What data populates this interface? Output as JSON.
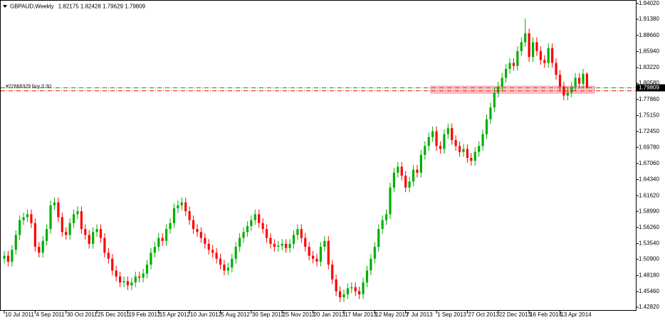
{
  "chart_data": {
    "type": "candlestick",
    "title": "GBPAUD,Weekly",
    "up_color": "#00b000",
    "down_color": "#ff0000",
    "ylim": [
      1.4282,
      1.9402
    ],
    "yticks": [
      {
        "value": 1.9402,
        "label": "1.94020"
      },
      {
        "value": 1.9138,
        "label": "1.91380"
      },
      {
        "value": 1.8866,
        "label": "1.88660"
      },
      {
        "value": 1.8594,
        "label": "1.85940"
      },
      {
        "value": 1.8322,
        "label": "1.83220"
      },
      {
        "value": 1.8058,
        "label": "1.80580"
      },
      {
        "value": 1.7786,
        "label": "1.77860"
      },
      {
        "value": 1.7515,
        "label": "1.75150"
      },
      {
        "value": 1.7245,
        "label": "1.72450"
      },
      {
        "value": 1.6978,
        "label": "1.69780"
      },
      {
        "value": 1.6706,
        "label": "1.67060"
      },
      {
        "value": 1.6434,
        "label": "1.64340"
      },
      {
        "value": 1.6162,
        "label": "1.61620"
      },
      {
        "value": 1.5899,
        "label": "1.58990"
      },
      {
        "value": 1.5626,
        "label": "1.56260"
      },
      {
        "value": 1.5354,
        "label": "1.53540"
      },
      {
        "value": 1.509,
        "label": "1.50900"
      },
      {
        "value": 1.4818,
        "label": "1.48180"
      },
      {
        "value": 1.4546,
        "label": "1.45460"
      },
      {
        "value": 1.4282,
        "label": "1.42820"
      }
    ],
    "categories": [
      "10 Jul 2011",
      null,
      null,
      null,
      null,
      null,
      null,
      null,
      "4 Sep 2011",
      null,
      null,
      null,
      null,
      null,
      null,
      null,
      "30 Oct 2011",
      null,
      null,
      null,
      null,
      null,
      null,
      null,
      "25 Dec 2011",
      null,
      null,
      null,
      null,
      null,
      null,
      null,
      "19 Feb 2012",
      null,
      null,
      null,
      null,
      null,
      null,
      null,
      "15 Apr 2012",
      null,
      null,
      null,
      null,
      null,
      null,
      null,
      "10 Jun 2012",
      null,
      null,
      null,
      null,
      null,
      null,
      null,
      "5 Aug 2012",
      null,
      null,
      null,
      null,
      null,
      null,
      null,
      "30 Sep 2012",
      null,
      null,
      null,
      null,
      null,
      null,
      null,
      "25 Nov 2012",
      null,
      null,
      null,
      null,
      null,
      null,
      null,
      "20 Jan 2013",
      null,
      null,
      null,
      null,
      null,
      null,
      null,
      "17 Mar 2013",
      null,
      null,
      null,
      null,
      null,
      null,
      null,
      "12 May 2013",
      null,
      null,
      null,
      null,
      null,
      null,
      null,
      "7 Jul 2013",
      null,
      null,
      null,
      null,
      null,
      null,
      null,
      "1 Sep 2013",
      null,
      null,
      null,
      null,
      null,
      null,
      null,
      "27 Oct 2013",
      null,
      null,
      null,
      null,
      null,
      null,
      null,
      "22 Dec 2013",
      null,
      null,
      null,
      null,
      null,
      null,
      null,
      "16 Feb 2014",
      null,
      null,
      null,
      null,
      null,
      null,
      null,
      "13 Apr 2014",
      null,
      null,
      null,
      null,
      null,
      null,
      null
    ],
    "open": [
      1.51,
      1.515,
      1.505,
      1.525,
      1.55,
      1.575,
      1.58,
      1.585,
      1.57,
      1.53,
      1.52,
      1.54,
      1.56,
      1.6,
      1.605,
      1.58,
      1.555,
      1.55,
      1.57,
      1.585,
      1.59,
      1.56,
      1.55,
      1.535,
      1.555,
      1.56,
      1.545,
      1.52,
      1.51,
      1.49,
      1.48,
      1.47,
      1.472,
      1.465,
      1.47,
      1.48,
      1.478,
      1.485,
      1.5,
      1.52,
      1.53,
      1.545,
      1.54,
      1.56,
      1.57,
      1.595,
      1.6,
      1.605,
      1.59,
      1.575,
      1.56,
      1.555,
      1.545,
      1.535,
      1.525,
      1.52,
      1.51,
      1.5,
      1.49,
      1.495,
      1.51,
      1.53,
      1.545,
      1.555,
      1.565,
      1.575,
      1.585,
      1.57,
      1.56,
      1.545,
      1.535,
      1.53,
      1.532,
      1.535,
      1.528,
      1.535,
      1.55,
      1.56,
      1.545,
      1.53,
      1.515,
      1.51,
      1.505,
      1.53,
      1.54,
      1.5,
      1.475,
      1.455,
      1.445,
      1.45,
      1.46,
      1.462,
      1.455,
      1.45,
      1.47,
      1.49,
      1.51,
      1.53,
      1.56,
      1.575,
      1.585,
      1.63,
      1.655,
      1.665,
      1.65,
      1.63,
      1.64,
      1.66,
      1.655,
      1.685,
      1.7,
      1.715,
      1.725,
      1.7,
      1.695,
      1.72,
      1.73,
      1.71,
      1.7,
      1.69,
      1.695,
      1.68,
      1.675,
      1.69,
      1.7,
      1.72,
      1.745,
      1.765,
      1.79,
      1.8,
      1.815,
      1.83,
      1.84,
      1.835,
      1.86,
      1.875,
      1.89,
      1.85,
      1.875,
      1.86,
      1.845,
      1.84,
      1.865,
      1.84,
      1.82,
      1.8,
      1.785,
      1.79,
      1.8,
      1.815,
      1.805,
      1.82175
    ],
    "high": [
      1.523,
      1.523,
      1.533,
      1.558,
      1.583,
      1.588,
      1.593,
      1.593,
      1.578,
      1.538,
      1.548,
      1.568,
      1.608,
      1.613,
      1.613,
      1.588,
      1.563,
      1.578,
      1.593,
      1.598,
      1.598,
      1.568,
      1.558,
      1.563,
      1.568,
      1.568,
      1.553,
      1.528,
      1.518,
      1.498,
      1.488,
      1.48,
      1.48,
      1.478,
      1.488,
      1.488,
      1.493,
      1.508,
      1.528,
      1.538,
      1.553,
      1.553,
      1.568,
      1.578,
      1.603,
      1.608,
      1.613,
      1.613,
      1.598,
      1.583,
      1.568,
      1.563,
      1.553,
      1.543,
      1.533,
      1.528,
      1.518,
      1.508,
      1.503,
      1.518,
      1.538,
      1.553,
      1.563,
      1.573,
      1.583,
      1.593,
      1.593,
      1.578,
      1.568,
      1.553,
      1.543,
      1.54,
      1.543,
      1.543,
      1.543,
      1.558,
      1.568,
      1.568,
      1.553,
      1.538,
      1.523,
      1.518,
      1.538,
      1.548,
      1.548,
      1.508,
      1.483,
      1.463,
      1.458,
      1.468,
      1.47,
      1.47,
      1.463,
      1.478,
      1.498,
      1.518,
      1.538,
      1.568,
      1.583,
      1.593,
      1.638,
      1.663,
      1.673,
      1.673,
      1.658,
      1.648,
      1.668,
      1.668,
      1.693,
      1.708,
      1.723,
      1.733,
      1.733,
      1.708,
      1.728,
      1.738,
      1.738,
      1.718,
      1.708,
      1.703,
      1.703,
      1.688,
      1.698,
      1.708,
      1.728,
      1.753,
      1.773,
      1.798,
      1.808,
      1.823,
      1.838,
      1.848,
      1.848,
      1.868,
      1.883,
      1.915,
      1.898,
      1.883,
      1.883,
      1.868,
      1.853,
      1.873,
      1.873,
      1.848,
      1.828,
      1.808,
      1.798,
      1.808,
      1.823,
      1.823,
      1.83,
      1.82428
    ],
    "low": [
      1.502,
      1.497,
      1.497,
      1.517,
      1.542,
      1.567,
      1.572,
      1.562,
      1.522,
      1.512,
      1.512,
      1.532,
      1.552,
      1.592,
      1.572,
      1.547,
      1.542,
      1.542,
      1.562,
      1.577,
      1.552,
      1.542,
      1.527,
      1.527,
      1.547,
      1.537,
      1.512,
      1.502,
      1.482,
      1.472,
      1.462,
      1.462,
      1.457,
      1.457,
      1.462,
      1.47,
      1.47,
      1.477,
      1.492,
      1.512,
      1.522,
      1.532,
      1.532,
      1.552,
      1.562,
      1.587,
      1.592,
      1.582,
      1.567,
      1.552,
      1.547,
      1.537,
      1.527,
      1.517,
      1.512,
      1.502,
      1.492,
      1.482,
      1.482,
      1.487,
      1.502,
      1.522,
      1.537,
      1.547,
      1.557,
      1.567,
      1.562,
      1.552,
      1.537,
      1.527,
      1.522,
      1.522,
      1.524,
      1.52,
      1.52,
      1.527,
      1.542,
      1.537,
      1.522,
      1.507,
      1.502,
      1.497,
      1.497,
      1.522,
      1.492,
      1.467,
      1.447,
      1.437,
      1.437,
      1.442,
      1.452,
      1.447,
      1.442,
      1.442,
      1.462,
      1.482,
      1.502,
      1.522,
      1.552,
      1.567,
      1.577,
      1.622,
      1.647,
      1.642,
      1.622,
      1.622,
      1.632,
      1.647,
      1.647,
      1.677,
      1.692,
      1.707,
      1.692,
      1.687,
      1.687,
      1.712,
      1.702,
      1.692,
      1.682,
      1.682,
      1.672,
      1.667,
      1.667,
      1.682,
      1.692,
      1.712,
      1.737,
      1.757,
      1.782,
      1.792,
      1.807,
      1.822,
      1.827,
      1.827,
      1.852,
      1.867,
      1.842,
      1.842,
      1.852,
      1.837,
      1.832,
      1.832,
      1.832,
      1.812,
      1.792,
      1.777,
      1.777,
      1.782,
      1.792,
      1.797,
      1.797,
      1.79629
    ],
    "close": [
      1.515,
      1.505,
      1.525,
      1.55,
      1.575,
      1.58,
      1.585,
      1.57,
      1.53,
      1.52,
      1.54,
      1.56,
      1.6,
      1.605,
      1.58,
      1.555,
      1.55,
      1.57,
      1.585,
      1.59,
      1.56,
      1.55,
      1.535,
      1.555,
      1.56,
      1.545,
      1.52,
      1.51,
      1.49,
      1.48,
      1.47,
      1.472,
      1.465,
      1.47,
      1.48,
      1.478,
      1.485,
      1.5,
      1.52,
      1.53,
      1.545,
      1.54,
      1.56,
      1.57,
      1.595,
      1.6,
      1.605,
      1.59,
      1.575,
      1.56,
      1.555,
      1.545,
      1.535,
      1.525,
      1.52,
      1.51,
      1.5,
      1.49,
      1.495,
      1.51,
      1.53,
      1.545,
      1.555,
      1.565,
      1.575,
      1.585,
      1.57,
      1.56,
      1.545,
      1.535,
      1.53,
      1.532,
      1.535,
      1.528,
      1.535,
      1.55,
      1.56,
      1.545,
      1.53,
      1.515,
      1.51,
      1.505,
      1.53,
      1.54,
      1.5,
      1.475,
      1.455,
      1.445,
      1.45,
      1.46,
      1.462,
      1.455,
      1.45,
      1.47,
      1.49,
      1.51,
      1.53,
      1.56,
      1.575,
      1.585,
      1.63,
      1.655,
      1.665,
      1.65,
      1.63,
      1.64,
      1.66,
      1.655,
      1.685,
      1.7,
      1.715,
      1.725,
      1.7,
      1.695,
      1.72,
      1.73,
      1.71,
      1.7,
      1.69,
      1.695,
      1.68,
      1.675,
      1.69,
      1.7,
      1.72,
      1.745,
      1.765,
      1.79,
      1.8,
      1.815,
      1.83,
      1.84,
      1.835,
      1.86,
      1.875,
      1.89,
      1.85,
      1.875,
      1.86,
      1.845,
      1.84,
      1.865,
      1.84,
      1.82,
      1.8,
      1.785,
      1.79,
      1.8,
      1.815,
      1.805,
      1.82175,
      1.79809
    ],
    "order": {
      "label": "#22869329 buy 0.30",
      "price": 1.793,
      "color": "#ff0000"
    },
    "bid_line": {
      "color": "#00a000"
    },
    "zone": {
      "low": 1.789,
      "high": 1.801,
      "color": "#ffc8d0"
    }
  }
}
